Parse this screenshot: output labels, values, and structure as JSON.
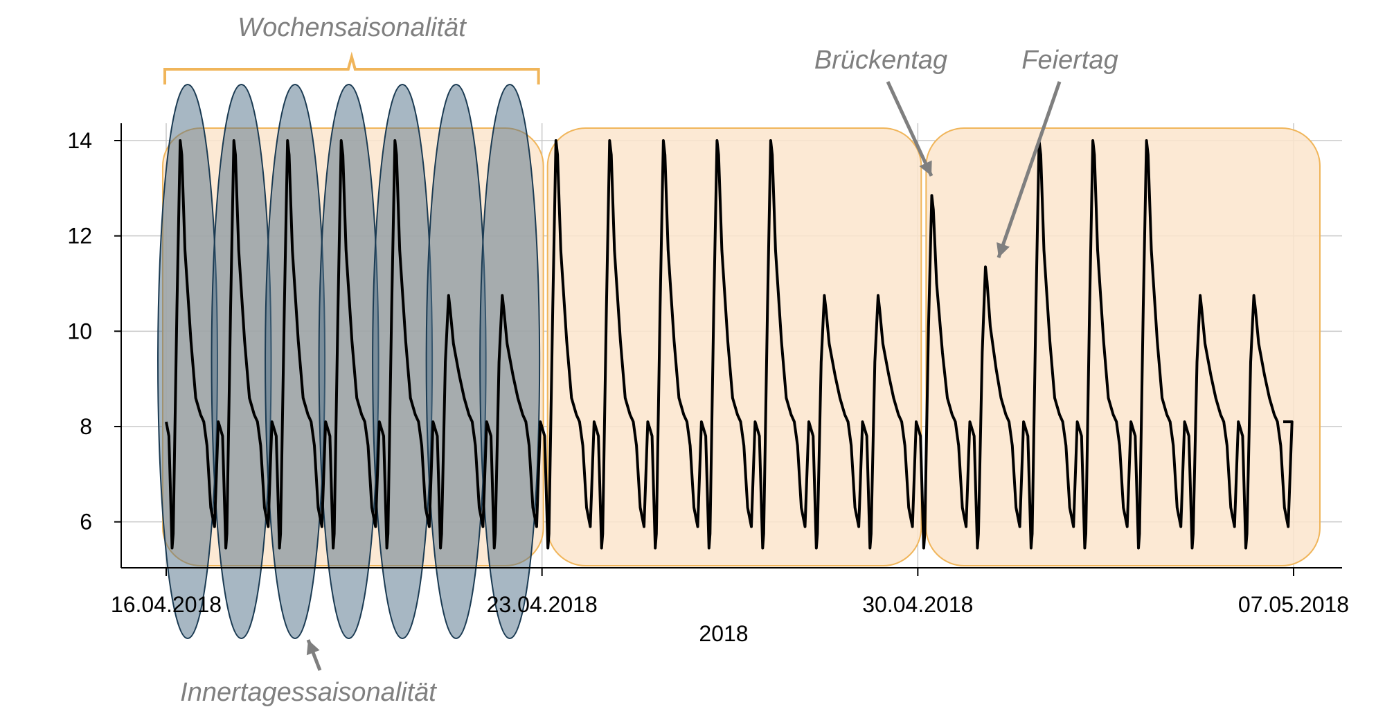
{
  "chart_data": {
    "type": "line",
    "title": "",
    "xlabel": "2018",
    "ylabel": "",
    "x_start": "16.04.2018",
    "x_end": "07.05.2018",
    "x_tick_labels": [
      "16.04.2018",
      "23.04.2018",
      "30.04.2018",
      "07.05.2018"
    ],
    "ylim": [
      5.0,
      14.5
    ],
    "y_ticks": [
      "6",
      "8",
      "10",
      "12",
      "14"
    ],
    "grid": true,
    "series": [
      {
        "days": [
          {
            "date": "16.04.2018",
            "peak": 14.0
          },
          {
            "date": "17.04.2018",
            "peak": 14.0
          },
          {
            "date": "18.04.2018",
            "peak": 14.0
          },
          {
            "date": "19.04.2018",
            "peak": 14.0
          },
          {
            "date": "20.04.2018",
            "peak": 14.0
          },
          {
            "date": "21.04.2018",
            "peak": 10.75
          },
          {
            "date": "22.04.2018",
            "peak": 10.75
          },
          {
            "date": "23.04.2018",
            "peak": 14.0
          },
          {
            "date": "24.04.2018",
            "peak": 14.0
          },
          {
            "date": "25.04.2018",
            "peak": 14.0
          },
          {
            "date": "26.04.2018",
            "peak": 14.0
          },
          {
            "date": "27.04.2018",
            "peak": 14.0
          },
          {
            "date": "28.04.2018",
            "peak": 10.75
          },
          {
            "date": "29.04.2018",
            "peak": 10.75
          },
          {
            "date": "30.04.2018",
            "peak": 12.85
          },
          {
            "date": "01.05.2018",
            "peak": 11.35
          },
          {
            "date": "02.05.2018",
            "peak": 14.0
          },
          {
            "date": "03.05.2018",
            "peak": 14.0
          },
          {
            "date": "04.05.2018",
            "peak": 14.0
          },
          {
            "date": "05.05.2018",
            "peak": 10.75
          },
          {
            "date": "06.05.2018",
            "peak": 10.75
          }
        ],
        "daily_min": 5.45,
        "start_value": 8.1,
        "end_value": 8.1
      }
    ],
    "annotations": {
      "weekly": "Wochensaisonalität",
      "intraday": "Innertagessaisonalität",
      "bridge_day": "Brückentag",
      "holiday": "Feiertag"
    },
    "colors": {
      "line": "#000000",
      "week_fill": "#fbe5cd",
      "week_stroke": "#f0b55a",
      "bracket": "#f0b55a",
      "day_ellipse_fill": "#4f7088",
      "day_ellipse_stroke": "#1a3a52",
      "annotation_text": "#7f7f7f",
      "arrow": "#7f7f7f",
      "grid": "#c8c8c8"
    }
  }
}
